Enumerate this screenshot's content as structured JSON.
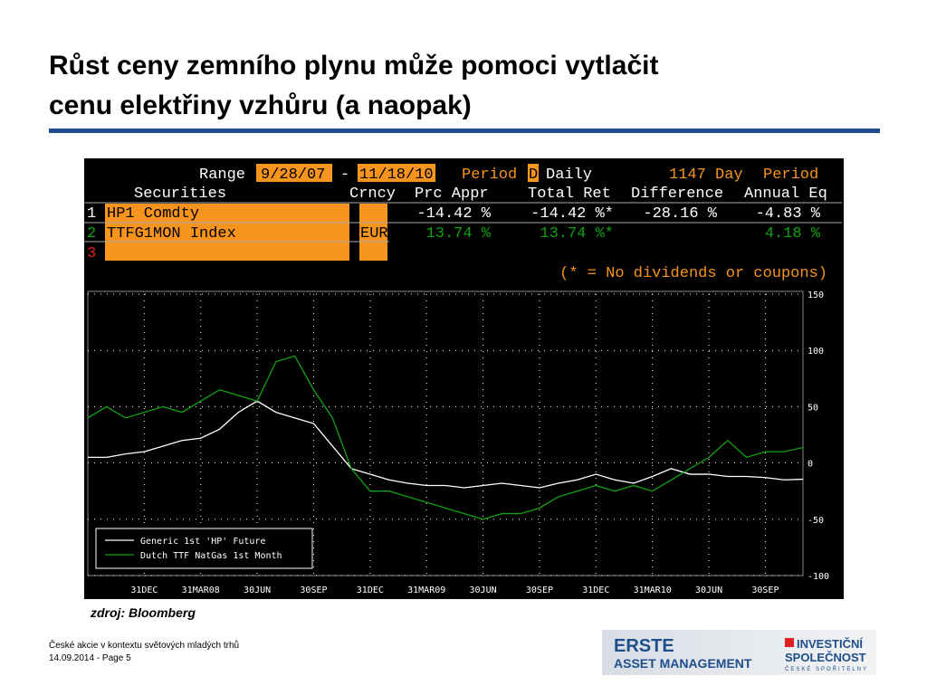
{
  "slide": {
    "title_line1": "Růst ceny zemního plynu může pomoci vytlačit",
    "title_line2": "cenu elektřiny vzhůru (a naopak)",
    "source": "zdroj: Bloomberg",
    "footer_line1": "České akcie v kontextu světových mladých trhů",
    "footer_line2": "14.09.2014 - Page 5",
    "logo_left_1": "ERSTE",
    "logo_left_2": "ASSET MANAGEMENT",
    "logo_right_1": "INVESTIČNÍ",
    "logo_right_2": "SPOLEČNOST",
    "logo_right_3": "ČESKÉ SPOŘITELNY"
  },
  "terminal": {
    "range_label": "Range",
    "start": "9/28/07",
    "dash": "-",
    "end": "11/18/10",
    "period_label": "Period",
    "period_code": "D",
    "period_name": "Daily",
    "days": "1147 Day",
    "period_label2": "Period",
    "columns": [
      "Securities",
      "Crncy",
      "Prc Appr",
      "Total Ret",
      "Difference",
      "Annual Eq"
    ],
    "rows": [
      {
        "num": "1",
        "security": "HP1 Comdty",
        "prc": "-14.42 %",
        "total": "-14.42 %*",
        "diff": "-28.16 %",
        "annual": "-4.83 %"
      },
      {
        "num": "2",
        "security": "TTFG1MON Index",
        "crncy": "EUR",
        "prc": "13.74 %",
        "total": "13.74 %*",
        "annual": "4.18 %"
      },
      {
        "num": "3"
      }
    ],
    "footnote": "(* = No dividends or coupons)"
  },
  "chart_data": {
    "type": "line",
    "categories": [
      null,
      null,
      null,
      "31DEC",
      null,
      null,
      "31MAR08",
      null,
      null,
      "30JUN",
      null,
      null,
      "30SEP",
      null,
      null,
      "31DEC",
      null,
      null,
      "31MAR09",
      null,
      null,
      "30JUN",
      null,
      null,
      "30SEP",
      null,
      null,
      "31DEC",
      null,
      null,
      "31MAR10",
      null,
      null,
      "30JUN",
      null,
      null,
      "30SEP",
      null,
      null
    ],
    "series": [
      {
        "name": "Generic 1st 'HP' Future",
        "color": "#ffffff",
        "values": [
          5,
          5,
          8,
          10,
          15,
          20,
          22,
          30,
          45,
          55,
          45,
          40,
          35,
          15,
          -5,
          -10,
          -15,
          -18,
          -20,
          -20,
          -22,
          -20,
          -18,
          -20,
          -22,
          -18,
          -15,
          -10,
          -15,
          -18,
          -12,
          -5,
          -10,
          -10,
          -12,
          -12,
          -13,
          -15,
          -14.42
        ]
      },
      {
        "name": "Dutch TTF NatGas 1st Month",
        "color": "#10a010",
        "values": [
          40,
          50,
          40,
          45,
          50,
          45,
          55,
          65,
          60,
          55,
          90,
          95,
          65,
          40,
          -5,
          -25,
          -25,
          -30,
          -35,
          -40,
          -45,
          -50,
          -45,
          -45,
          -40,
          -30,
          -25,
          -20,
          -25,
          -20,
          -25,
          -15,
          -5,
          5,
          20,
          5,
          10,
          10,
          13.74
        ]
      }
    ],
    "ylim": [
      -100,
      150
    ],
    "yticks": [
      150,
      100,
      50,
      0,
      -50,
      -100
    ],
    "grid": true
  }
}
